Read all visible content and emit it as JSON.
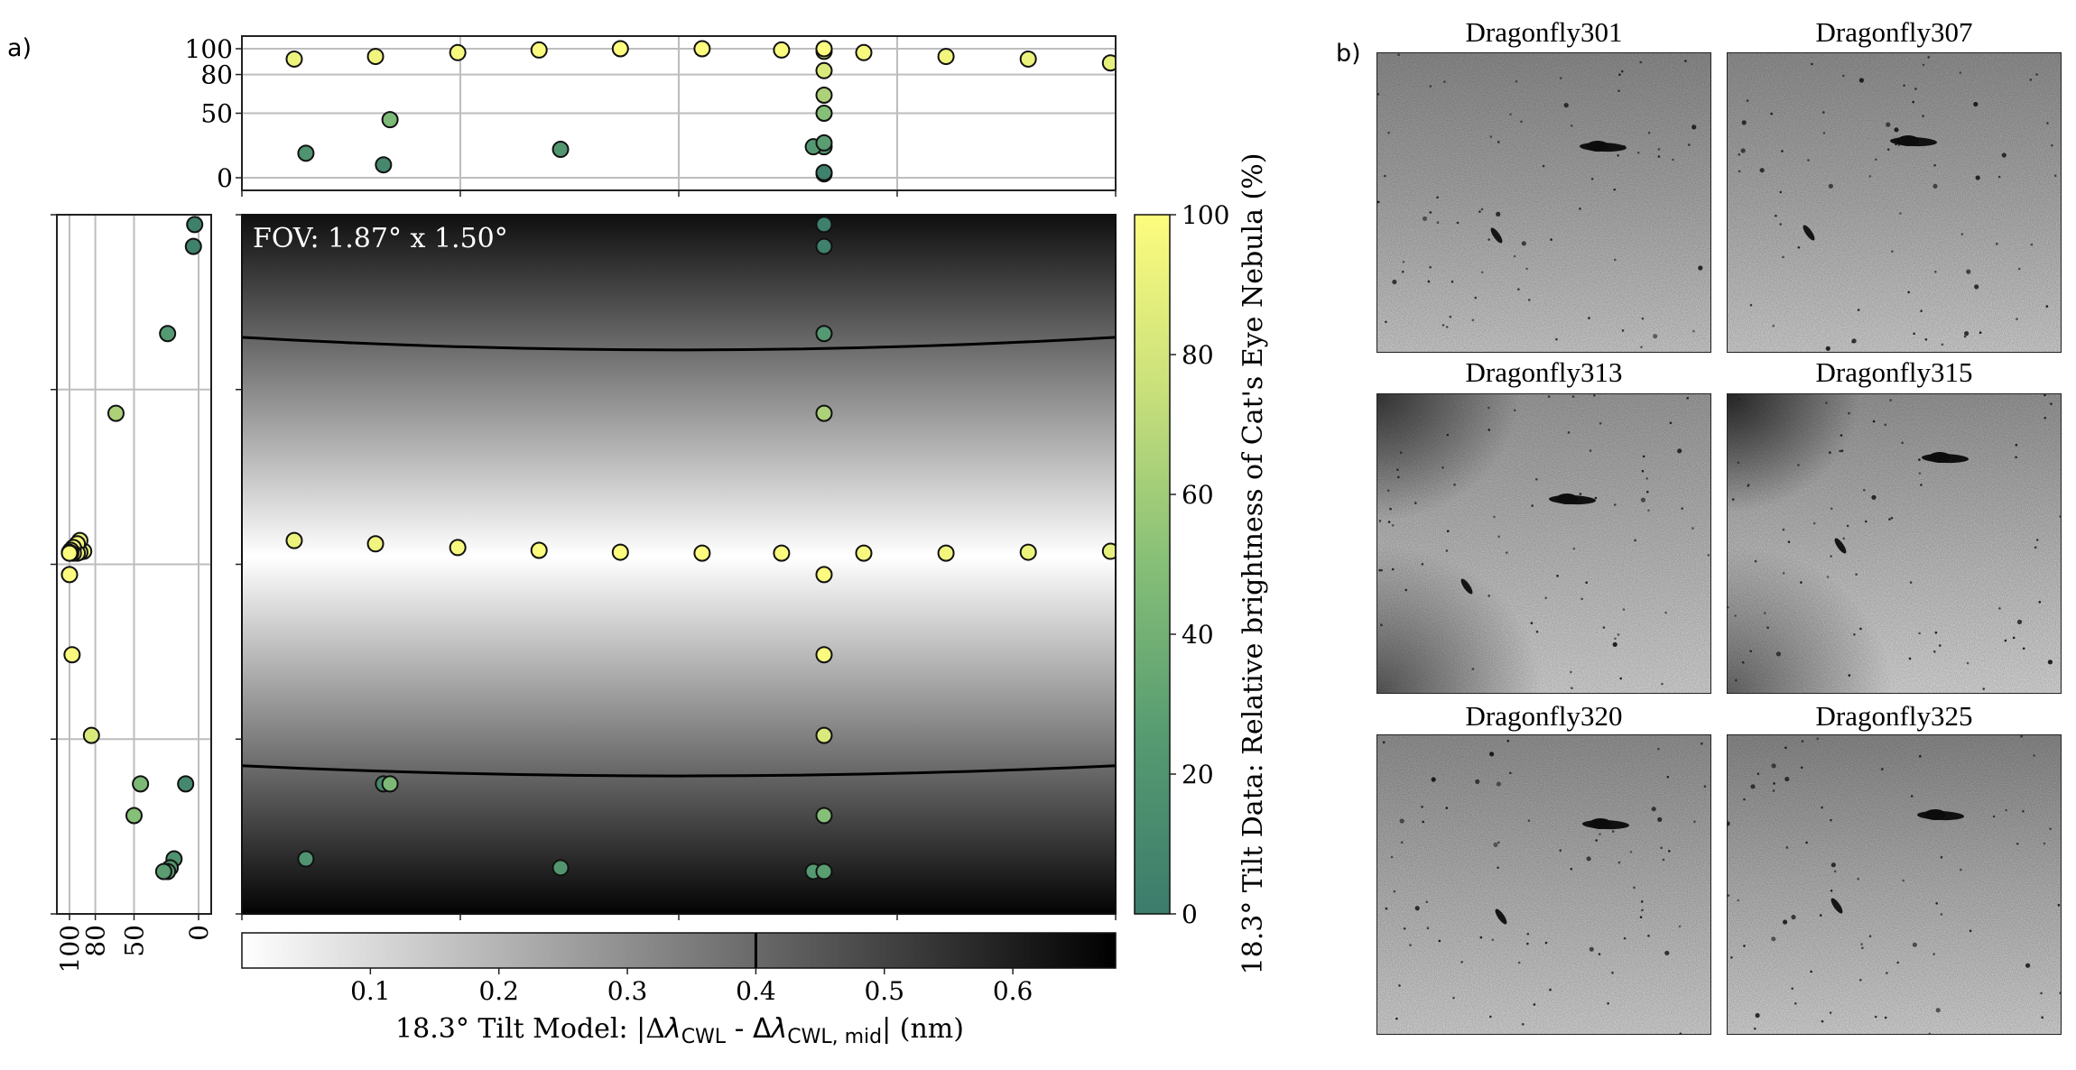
{
  "panel_a_label": "a)",
  "panel_b_label": "b)",
  "chart_data": {
    "type": "scatter",
    "title": "",
    "annotation": "FOV: 1.87° x 1.50°",
    "fov_deg": [
      1.87,
      1.5
    ],
    "xlim": [
      0,
      1.87
    ],
    "ylim": [
      0,
      1.5
    ],
    "model": {
      "type": "heatmap",
      "colormap": "gray_r",
      "range": [
        0,
        0.68
      ],
      "center_row_deg": 0.733,
      "slope_nm_per_deg": 0.875,
      "contour_level": 0.4,
      "contours": [
        [
          [
            0,
            0.263
          ],
          [
            0.935,
            0.29
          ],
          [
            1.87,
            0.263
          ]
        ],
        [
          [
            0,
            1.182
          ],
          [
            0.935,
            1.204
          ],
          [
            1.87,
            1.182
          ]
        ]
      ],
      "colorbar": {
        "ticks": [
          "0.1",
          "0.2",
          "0.3",
          "0.4",
          "0.5",
          "0.6"
        ],
        "tick_values": [
          0.1,
          0.2,
          0.3,
          0.4,
          0.5,
          0.6
        ],
        "label_prefix": "18.3° Tilt Model: |Δ",
        "label_lambda1": "λ",
        "label_sub1": "CWL",
        "label_mid": " - Δ",
        "label_lambda2": "λ",
        "label_sub2": "CWL, mid",
        "label_suffix": "| (nm)"
      }
    },
    "brightness_colorbar": {
      "label": "18.3° Tilt Data: Relative brightness of Cat's Eye Nebula (%)",
      "ticks": [
        "0",
        "20",
        "40",
        "60",
        "80",
        "100"
      ],
      "tick_values": [
        0,
        20,
        40,
        60,
        80,
        100
      ],
      "range": [
        0,
        100
      ],
      "colors": [
        "#3b7c6b",
        "#559a71",
        "#86bf77",
        "#c9e07b",
        "#fdfc7e"
      ]
    },
    "marginal_top": {
      "ticks": [
        "100",
        "80",
        "50",
        "0"
      ],
      "tick_values": [
        100,
        80,
        50,
        0
      ]
    },
    "marginal_left": {
      "ticks": [
        "100",
        "80",
        "50",
        "0"
      ],
      "tick_values": [
        100,
        80,
        50,
        0
      ]
    },
    "points": [
      {
        "x": 0.112,
        "y": 0.699,
        "brightness": 92
      },
      {
        "x": 0.286,
        "y": 0.706,
        "brightness": 94
      },
      {
        "x": 0.462,
        "y": 0.714,
        "brightness": 97
      },
      {
        "x": 0.636,
        "y": 0.72,
        "brightness": 99
      },
      {
        "x": 0.81,
        "y": 0.724,
        "brightness": 100
      },
      {
        "x": 0.985,
        "y": 0.726,
        "brightness": 100
      },
      {
        "x": 1.155,
        "y": 0.726,
        "brightness": 99
      },
      {
        "x": 1.331,
        "y": 0.726,
        "brightness": 97
      },
      {
        "x": 1.507,
        "y": 0.726,
        "brightness": 94
      },
      {
        "x": 1.683,
        "y": 0.724,
        "brightness": 92
      },
      {
        "x": 1.859,
        "y": 0.722,
        "brightness": 89
      },
      {
        "x": 1.246,
        "y": 0.021,
        "brightness": 3
      },
      {
        "x": 1.246,
        "y": 0.068,
        "brightness": 4
      },
      {
        "x": 1.246,
        "y": 0.255,
        "brightness": 24
      },
      {
        "x": 1.246,
        "y": 0.426,
        "brightness": 64
      },
      {
        "x": 1.246,
        "y": 0.772,
        "brightness": 100
      },
      {
        "x": 1.246,
        "y": 0.944,
        "brightness": 98
      },
      {
        "x": 1.246,
        "y": 1.117,
        "brightness": 83
      },
      {
        "x": 1.246,
        "y": 1.289,
        "brightness": 50
      },
      {
        "x": 1.246,
        "y": 1.409,
        "brightness": 27
      },
      {
        "x": 1.223,
        "y": 1.409,
        "brightness": 24
      },
      {
        "x": 0.137,
        "y": 1.382,
        "brightness": 19
      },
      {
        "x": 0.317,
        "y": 1.221,
        "brightness": 45
      },
      {
        "x": 0.303,
        "y": 1.221,
        "brightness": 10
      },
      {
        "x": 0.682,
        "y": 1.401,
        "brightness": 22
      }
    ]
  },
  "thumbnails": [
    {
      "title": "Dragonfly301"
    },
    {
      "title": "Dragonfly307"
    },
    {
      "title": "Dragonfly313"
    },
    {
      "title": "Dragonfly315"
    },
    {
      "title": "Dragonfly320"
    },
    {
      "title": "Dragonfly325"
    }
  ]
}
